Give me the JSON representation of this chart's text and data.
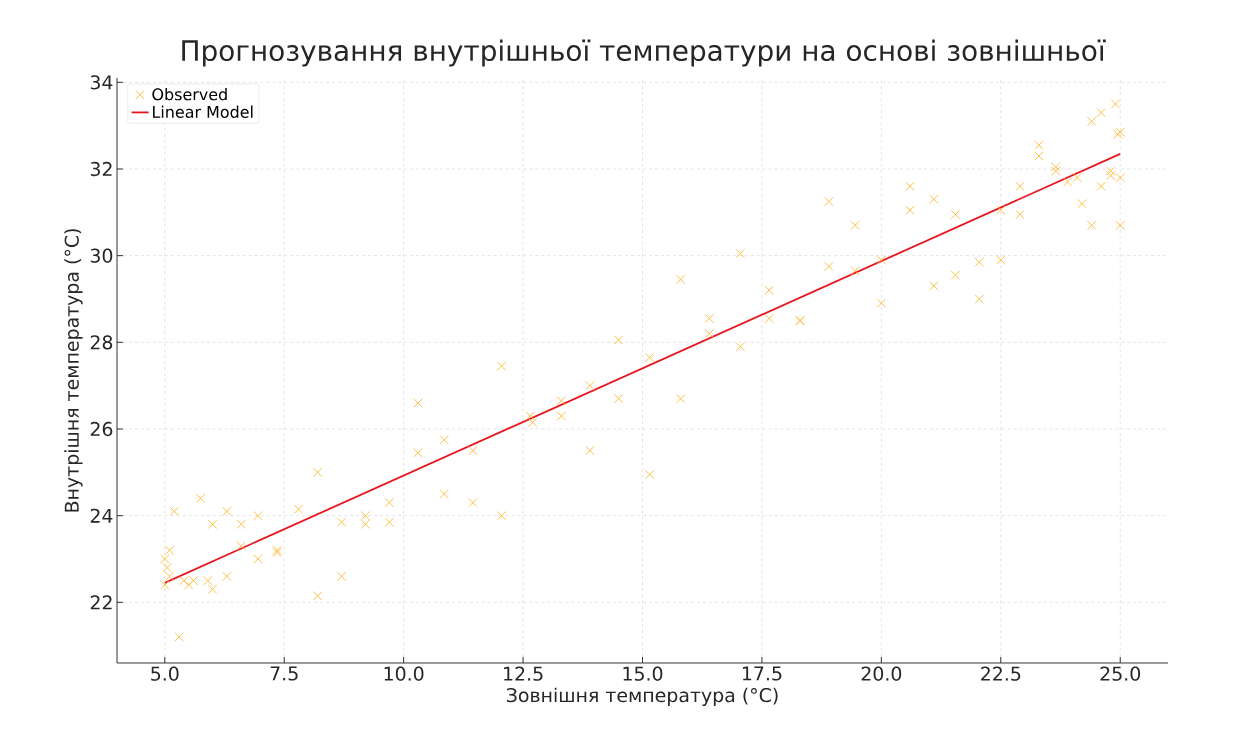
{
  "chart_data": {
    "type": "scatter",
    "title": "Прогнозування внутрішньої температури на основі зовнішньої",
    "xlabel": "Зовнішня температура (°C)",
    "ylabel": "Внутрішня температура (°C)",
    "xlim": [
      4.0,
      26.0
    ],
    "ylim": [
      20.6,
      34.1
    ],
    "xticks": [
      {
        "value": 5,
        "label": "5.0"
      },
      {
        "value": 7.5,
        "label": "7.5"
      },
      {
        "value": 10,
        "label": "10.0"
      },
      {
        "value": 12.5,
        "label": "12.5"
      },
      {
        "value": 15,
        "label": "15.0"
      },
      {
        "value": 17.5,
        "label": "17.5"
      },
      {
        "value": 20,
        "label": "20.0"
      },
      {
        "value": 22.5,
        "label": "22.5"
      },
      {
        "value": 25,
        "label": "25.0"
      }
    ],
    "yticks": [
      22,
      24,
      26,
      28,
      30,
      32,
      34
    ],
    "grid": true,
    "legend": "top left",
    "series": [
      {
        "name": "Observed",
        "marker": "cross",
        "color": "#ffb732",
        "x": [
          5.0,
          5.05,
          5.1,
          5.0,
          5.1,
          5.2,
          5.3,
          5.4,
          5.5,
          5.6,
          5.75,
          5.9,
          6.0,
          6.0,
          6.3,
          6.3,
          6.6,
          6.6,
          6.95,
          6.95,
          7.35,
          7.35,
          7.8,
          8.2,
          8.2,
          8.7,
          8.7,
          9.2,
          9.2,
          9.7,
          9.7,
          10.3,
          10.3,
          10.85,
          10.85,
          11.45,
          11.45,
          12.05,
          12.05,
          12.65,
          12.7,
          13.3,
          13.3,
          13.9,
          13.9,
          14.5,
          14.5,
          15.15,
          15.15,
          15.8,
          15.8,
          16.4,
          16.4,
          17.05,
          17.05,
          17.65,
          17.65,
          18.3,
          18.3,
          18.9,
          18.9,
          19.45,
          19.45,
          20.0,
          20.0,
          20.6,
          20.6,
          21.1,
          21.1,
          21.55,
          21.55,
          22.05,
          22.05,
          22.5,
          22.5,
          22.9,
          22.9,
          23.3,
          23.3,
          23.65,
          23.65,
          23.9,
          24.1,
          24.2,
          24.4,
          24.4,
          24.6,
          24.6,
          24.8,
          24.8,
          24.9,
          24.95,
          25.0,
          25.0,
          25.0
        ],
        "values": [
          23.0,
          22.8,
          23.2,
          22.4,
          22.6,
          24.1,
          21.2,
          22.5,
          22.4,
          22.5,
          24.4,
          22.5,
          22.3,
          23.8,
          22.6,
          24.1,
          23.8,
          23.3,
          24.0,
          23.0,
          23.2,
          23.15,
          24.15,
          25.0,
          22.15,
          23.85,
          22.6,
          24.0,
          23.8,
          24.3,
          23.85,
          26.6,
          25.45,
          25.75,
          24.5,
          25.5,
          24.3,
          27.45,
          24.0,
          26.3,
          26.15,
          26.65,
          26.3,
          27.0,
          25.5,
          28.05,
          26.7,
          27.65,
          24.95,
          29.45,
          26.7,
          28.55,
          28.2,
          30.05,
          27.9,
          29.2,
          28.55,
          28.5,
          28.5,
          31.25,
          29.75,
          30.7,
          29.65,
          29.9,
          28.9,
          31.6,
          31.05,
          31.3,
          29.3,
          30.95,
          29.55,
          29.85,
          29.0,
          31.05,
          29.9,
          31.6,
          30.95,
          32.55,
          32.3,
          32.05,
          31.95,
          31.7,
          31.8,
          31.2,
          33.1,
          30.7,
          33.3,
          31.6,
          31.85,
          31.95,
          33.5,
          32.8,
          32.85,
          31.8,
          30.7
        ]
      },
      {
        "name": "Linear Model",
        "type": "line",
        "line_style": "solid",
        "color": "#e8141e",
        "x": [
          5.0,
          25.0
        ],
        "values": [
          22.45,
          32.35
        ]
      }
    ]
  }
}
